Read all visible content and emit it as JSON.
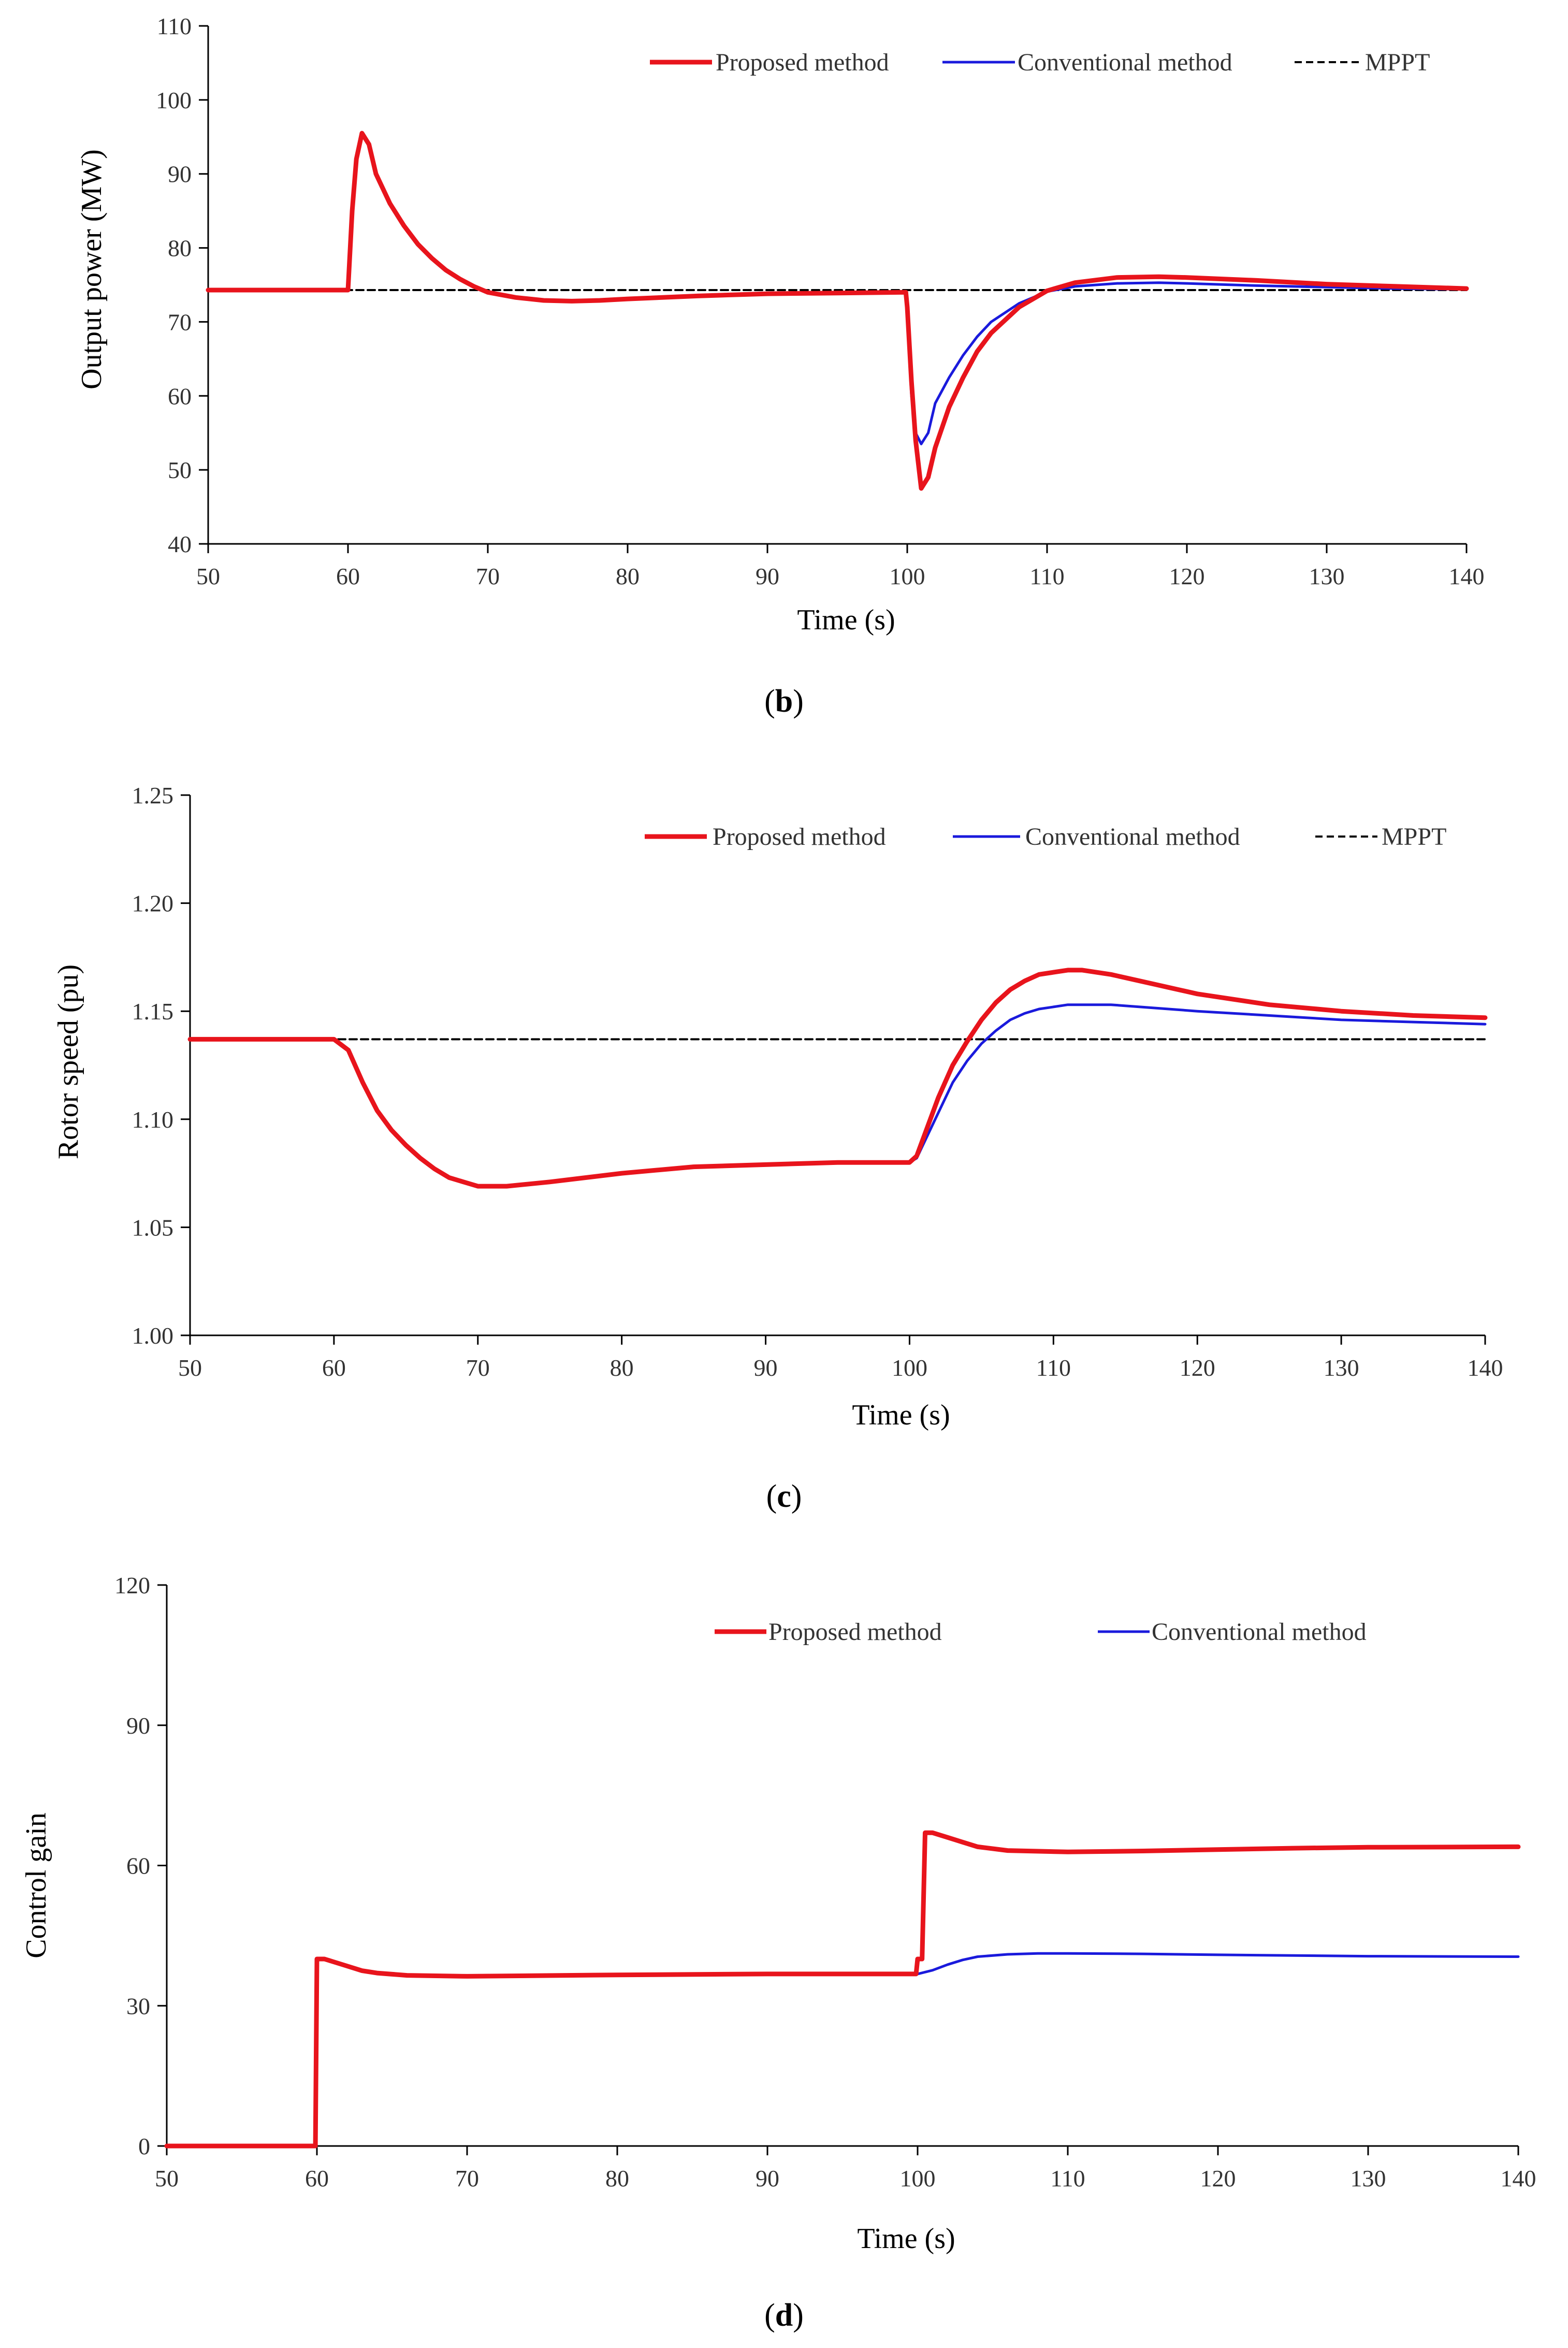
{
  "colors": {
    "proposed": "#e8141c",
    "conventional": "#1a1adc",
    "mppt": "#000000",
    "axis": "#000000"
  },
  "chart_data": [
    {
      "type": "line",
      "caption": "(b)",
      "caption_letter": "b",
      "title": "",
      "xlabel": "Time (s)",
      "ylabel": "Output power (MW)",
      "xlim": [
        50,
        140
      ],
      "ylim": [
        40,
        110
      ],
      "xticks": [
        50,
        60,
        70,
        80,
        90,
        100,
        110,
        120,
        130,
        140
      ],
      "yticks": [
        40,
        50,
        60,
        70,
        80,
        90,
        100,
        110
      ],
      "xtick_labels": [
        "50",
        "60",
        "70",
        "80",
        "90",
        "100",
        "110",
        "120",
        "130",
        "140"
      ],
      "ytick_labels": [
        "40",
        "50",
        "60",
        "70",
        "80",
        "90",
        "100",
        "110"
      ],
      "legend": [
        "Proposed method",
        "Conventional method",
        "MPPT"
      ],
      "series": [
        {
          "name": "Proposed method",
          "x": [
            50,
            60,
            60.3,
            60.6,
            61,
            61.5,
            62,
            63,
            64,
            65,
            66,
            67,
            68,
            69,
            70,
            72,
            74,
            76,
            78,
            80,
            85,
            90,
            95,
            99.9,
            100,
            100.3,
            100.6,
            101,
            101.5,
            102,
            103,
            104,
            105,
            106,
            108,
            110,
            112,
            115,
            118,
            120,
            125,
            130,
            135,
            140
          ],
          "y": [
            74.3,
            74.3,
            85,
            92,
            95.5,
            94,
            90,
            86,
            83,
            80.5,
            78.6,
            77,
            75.8,
            74.8,
            74,
            73.3,
            72.9,
            72.8,
            72.9,
            73.1,
            73.5,
            73.8,
            73.9,
            74,
            72,
            62,
            54,
            47.5,
            49,
            53,
            58.5,
            62.5,
            66,
            68.5,
            72,
            74.2,
            75.3,
            76,
            76.1,
            76,
            75.6,
            75.1,
            74.8,
            74.5
          ]
        },
        {
          "name": "Conventional method",
          "x": [
            50,
            60,
            60.3,
            60.6,
            61,
            61.5,
            62,
            63,
            64,
            65,
            66,
            67,
            68,
            69,
            70,
            72,
            74,
            76,
            78,
            80,
            85,
            90,
            95,
            99.9,
            100,
            100.3,
            100.6,
            101,
            101.5,
            102,
            103,
            104,
            105,
            106,
            108,
            110,
            112,
            115,
            118,
            120,
            125,
            130,
            135,
            140
          ],
          "y": [
            74.3,
            74.3,
            85,
            92,
            95.5,
            94,
            90,
            86,
            83,
            80.5,
            78.6,
            77,
            75.8,
            74.8,
            74,
            73.3,
            72.9,
            72.8,
            72.9,
            73.1,
            73.5,
            73.8,
            73.9,
            74,
            70,
            60,
            55,
            53.5,
            55,
            59,
            62.5,
            65.5,
            68,
            70,
            72.5,
            74.1,
            74.8,
            75.2,
            75.3,
            75.2,
            74.9,
            74.7,
            74.5,
            74.4
          ]
        },
        {
          "name": "MPPT",
          "x": [
            50,
            140
          ],
          "y": [
            74.3,
            74.3
          ]
        }
      ]
    },
    {
      "type": "line",
      "caption": "(c)",
      "caption_letter": "c",
      "title": "",
      "xlabel": "Time (s)",
      "ylabel": "Rotor speed (pu)",
      "xlim": [
        50,
        140
      ],
      "ylim": [
        1.0,
        1.25
      ],
      "xticks": [
        50,
        60,
        70,
        80,
        90,
        100,
        110,
        120,
        130,
        140
      ],
      "yticks": [
        1.0,
        1.05,
        1.1,
        1.15,
        1.2,
        1.25
      ],
      "xtick_labels": [
        "50",
        "60",
        "70",
        "80",
        "90",
        "100",
        "110",
        "120",
        "130",
        "140"
      ],
      "ytick_labels": [
        "1.00",
        "1.05",
        "1.10",
        "1.15",
        "1.20",
        "1.25"
      ],
      "legend": [
        "Proposed method",
        "Conventional method",
        "MPPT"
      ],
      "series": [
        {
          "name": "Proposed method",
          "x": [
            50,
            60,
            61,
            62,
            63,
            64,
            65,
            66,
            67,
            68,
            69,
            70,
            72,
            75,
            80,
            85,
            90,
            95,
            100,
            100.5,
            101,
            102,
            103,
            104,
            105,
            106,
            107,
            108,
            109,
            110,
            111,
            112,
            114,
            116,
            118,
            120,
            125,
            130,
            135,
            140
          ],
          "y": [
            1.137,
            1.137,
            1.132,
            1.117,
            1.104,
            1.095,
            1.088,
            1.082,
            1.077,
            1.073,
            1.071,
            1.069,
            1.069,
            1.071,
            1.075,
            1.078,
            1.079,
            1.08,
            1.08,
            1.083,
            1.092,
            1.11,
            1.125,
            1.136,
            1.146,
            1.154,
            1.16,
            1.164,
            1.167,
            1.168,
            1.169,
            1.169,
            1.167,
            1.164,
            1.161,
            1.158,
            1.153,
            1.15,
            1.148,
            1.147
          ]
        },
        {
          "name": "Conventional method",
          "x": [
            50,
            60,
            61,
            62,
            63,
            64,
            65,
            66,
            67,
            68,
            69,
            70,
            72,
            75,
            80,
            85,
            90,
            95,
            100,
            100.5,
            101,
            102,
            103,
            104,
            105,
            106,
            107,
            108,
            109,
            110,
            111,
            112,
            114,
            116,
            118,
            120,
            125,
            130,
            135,
            140
          ],
          "y": [
            1.137,
            1.137,
            1.132,
            1.117,
            1.104,
            1.095,
            1.088,
            1.082,
            1.077,
            1.073,
            1.071,
            1.069,
            1.069,
            1.071,
            1.075,
            1.078,
            1.079,
            1.08,
            1.08,
            1.082,
            1.089,
            1.103,
            1.117,
            1.127,
            1.135,
            1.141,
            1.146,
            1.149,
            1.151,
            1.152,
            1.153,
            1.153,
            1.153,
            1.152,
            1.151,
            1.15,
            1.148,
            1.146,
            1.145,
            1.144
          ]
        },
        {
          "name": "MPPT",
          "x": [
            50,
            140
          ],
          "y": [
            1.137,
            1.137
          ]
        }
      ]
    },
    {
      "type": "line",
      "caption": "(d)",
      "caption_letter": "d",
      "title": "",
      "xlabel": "Time (s)",
      "ylabel": "Control gain",
      "xlim": [
        50,
        140
      ],
      "ylim": [
        0,
        120
      ],
      "xticks": [
        50,
        60,
        70,
        80,
        90,
        100,
        110,
        120,
        130,
        140
      ],
      "yticks": [
        0,
        30,
        60,
        90,
        120
      ],
      "xtick_labels": [
        "50",
        "60",
        "70",
        "80",
        "90",
        "100",
        "110",
        "120",
        "130",
        "140"
      ],
      "ytick_labels": [
        "0",
        "30",
        "60",
        "90",
        "120"
      ],
      "legend": [
        "Proposed method",
        "Conventional method"
      ],
      "series": [
        {
          "name": "Proposed method",
          "x": [
            50,
            59.9,
            60,
            60.5,
            61,
            62,
            63,
            64,
            66,
            70,
            80,
            90,
            99.9,
            100,
            100.3,
            100.5,
            101,
            102,
            103,
            104,
            106,
            110,
            115,
            120,
            125,
            130,
            140
          ],
          "y": [
            0,
            0,
            40,
            40,
            39.5,
            38.5,
            37.5,
            37,
            36.5,
            36.3,
            36.6,
            36.8,
            36.8,
            40,
            40,
            67,
            67,
            66,
            65,
            64,
            63.2,
            62.9,
            63.1,
            63.4,
            63.7,
            63.9,
            64
          ]
        },
        {
          "name": "Conventional method",
          "x": [
            50,
            59.9,
            60,
            60.5,
            61,
            62,
            63,
            64,
            66,
            70,
            80,
            90,
            99.9,
            100,
            101,
            102,
            103,
            104,
            106,
            108,
            110,
            115,
            120,
            130,
            140
          ],
          "y": [
            0,
            0,
            40,
            40,
            39.5,
            38.5,
            37.5,
            37,
            36.5,
            36.3,
            36.6,
            36.8,
            36.8,
            36.8,
            37.6,
            38.8,
            39.8,
            40.5,
            41,
            41.2,
            41.2,
            41.1,
            40.9,
            40.6,
            40.5
          ]
        }
      ]
    }
  ]
}
